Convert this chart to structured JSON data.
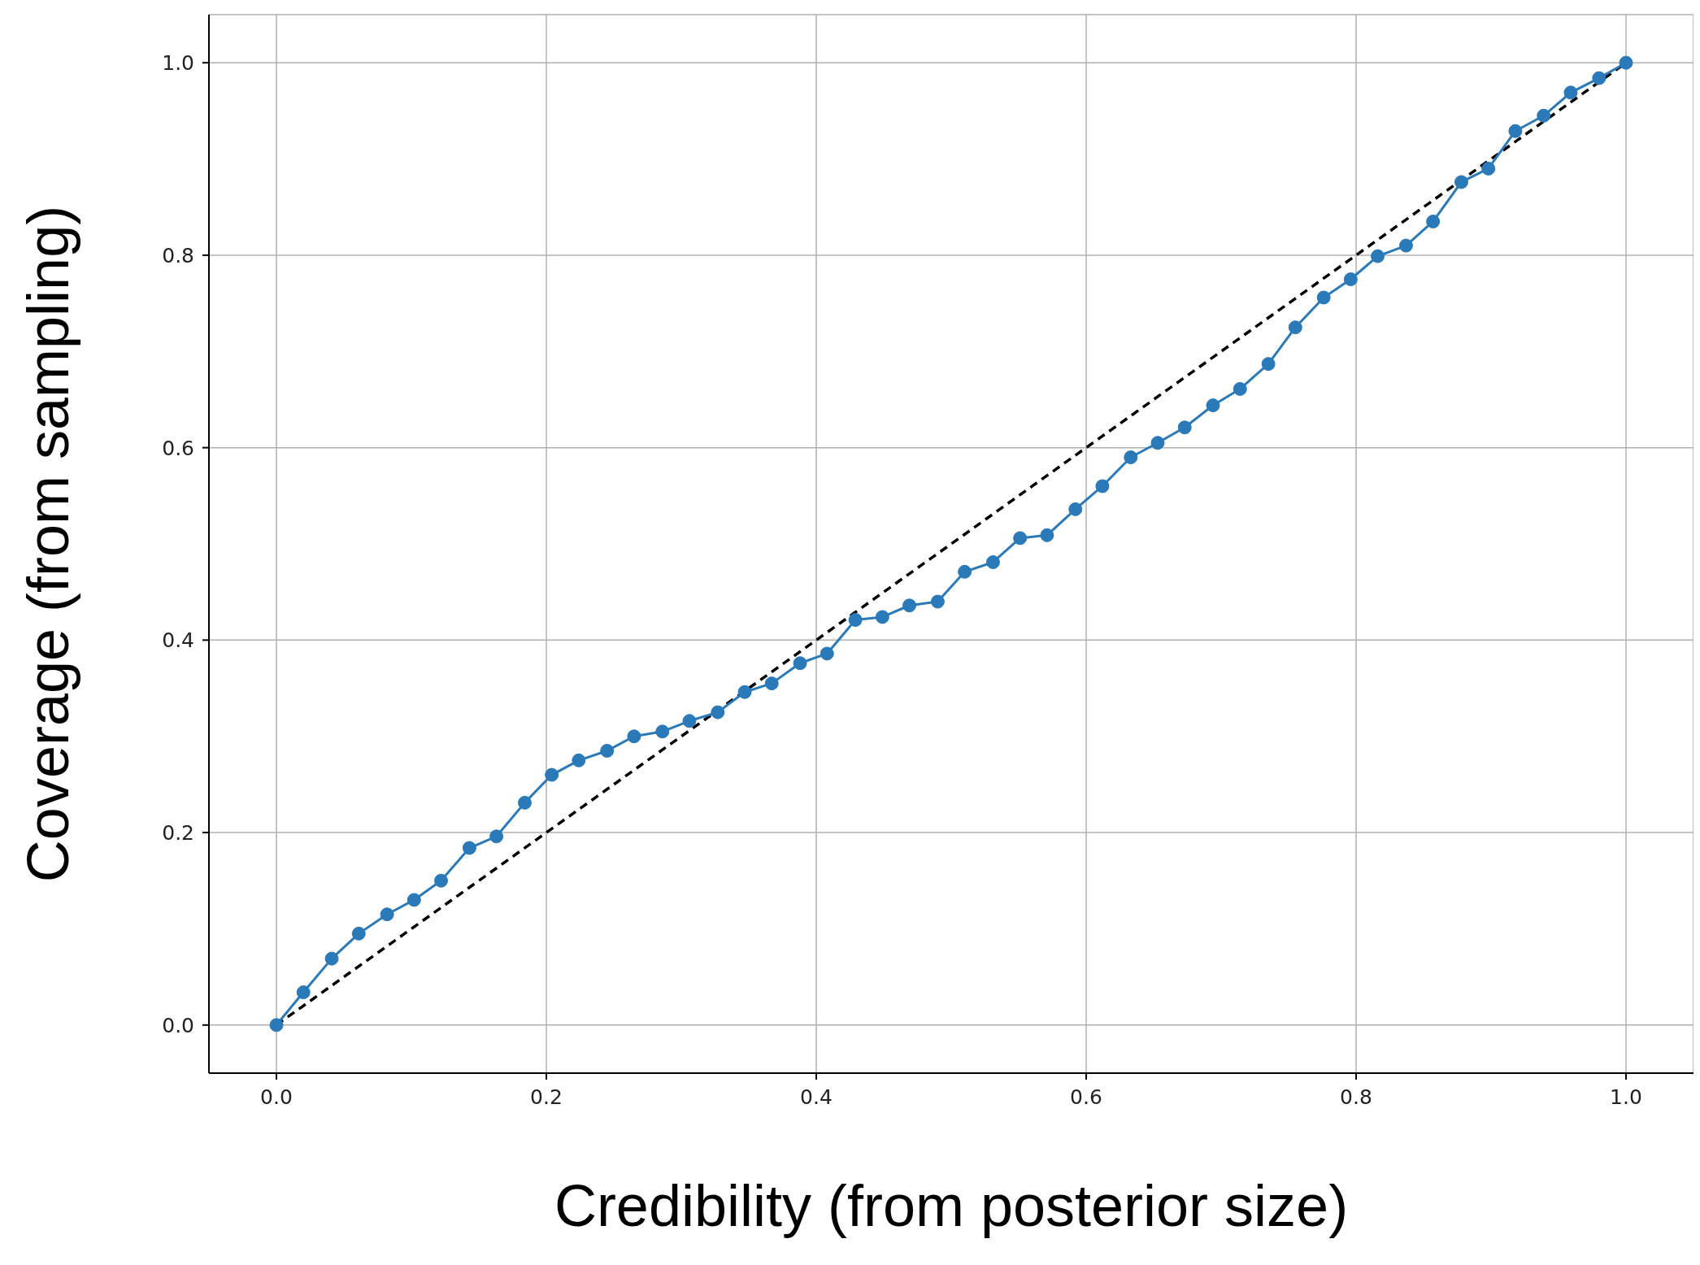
{
  "chart_data": {
    "type": "line",
    "xlabel": "Credibility (from posterior size)",
    "ylabel": "Coverage (from sampling)",
    "xlim": [
      -0.05,
      1.05
    ],
    "ylim": [
      -0.05,
      1.05
    ],
    "xticks": [
      {
        "value": 0,
        "label": "0.0"
      },
      {
        "value": 0.2,
        "label": "0.2"
      },
      {
        "value": 0.4,
        "label": "0.4"
      },
      {
        "value": 0.6,
        "label": "0.6"
      },
      {
        "value": 0.8,
        "label": "0.8"
      },
      {
        "value": 1,
        "label": "1.0"
      }
    ],
    "yticks": [
      {
        "value": 0,
        "label": "0.0"
      },
      {
        "value": 0.2,
        "label": "0.2"
      },
      {
        "value": 0.4,
        "label": "0.4"
      },
      {
        "value": 0.6,
        "label": "0.6"
      },
      {
        "value": 0.8,
        "label": "0.8"
      },
      {
        "value": 1,
        "label": "1.0"
      }
    ],
    "grid": true,
    "marker": "circle",
    "series": [
      {
        "color": "#2a7ab9",
        "x": [
          0,
          0.02,
          0.041,
          0.061,
          0.082,
          0.102,
          0.122,
          0.143,
          0.163,
          0.184,
          0.204,
          0.224,
          0.245,
          0.265,
          0.286,
          0.306,
          0.327,
          0.347,
          0.367,
          0.388,
          0.408,
          0.429,
          0.449,
          0.469,
          0.49,
          0.51,
          0.531,
          0.551,
          0.571,
          0.592,
          0.612,
          0.633,
          0.653,
          0.673,
          0.694,
          0.714,
          0.735,
          0.755,
          0.776,
          0.796,
          0.816,
          0.837,
          0.857,
          0.878,
          0.898,
          0.918,
          0.939,
          0.959,
          0.98,
          1
        ],
        "values": [
          0,
          0.034,
          0.069,
          0.095,
          0.115,
          0.13,
          0.15,
          0.184,
          0.196,
          0.231,
          0.26,
          0.275,
          0.285,
          0.3,
          0.305,
          0.316,
          0.325,
          0.346,
          0.355,
          0.376,
          0.386,
          0.421,
          0.424,
          0.436,
          0.44,
          0.471,
          0.481,
          0.506,
          0.509,
          0.536,
          0.56,
          0.59,
          0.605,
          0.621,
          0.644,
          0.661,
          0.687,
          0.725,
          0.756,
          0.775,
          0.799,
          0.81,
          0.835,
          0.876,
          0.89,
          0.929,
          0.945,
          0.969,
          0.984,
          1
        ]
      },
      {
        "color": "#000000",
        "x": [
          0,
          1
        ],
        "values": [
          0,
          1
        ],
        "marker": "none",
        "line_style": "dashed"
      }
    ]
  }
}
